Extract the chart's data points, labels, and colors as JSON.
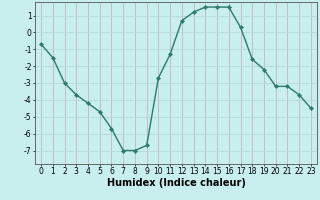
{
  "x": [
    0,
    1,
    2,
    3,
    4,
    5,
    6,
    7,
    8,
    9,
    10,
    11,
    12,
    13,
    14,
    15,
    16,
    17,
    18,
    19,
    20,
    21,
    22,
    23
  ],
  "y": [
    -0.7,
    -1.5,
    -3.0,
    -3.7,
    -4.2,
    -4.7,
    -5.7,
    -7.0,
    -7.0,
    -6.7,
    -2.7,
    -1.3,
    0.7,
    1.2,
    1.5,
    1.5,
    1.5,
    0.3,
    -1.6,
    -2.2,
    -3.2,
    -3.2,
    -3.7,
    -4.5
  ],
  "line_color": "#2d7a6a",
  "marker": "D",
  "markersize": 2.2,
  "background_color": "#c8eeee",
  "grid_color_h": "#b8d8d8",
  "grid_color_v": "#c0b8b8",
  "xlabel": "Humidex (Indice chaleur)",
  "ylim": [
    -7.8,
    1.8
  ],
  "xlim": [
    -0.5,
    23.5
  ],
  "yticks": [
    -7,
    -6,
    -5,
    -4,
    -3,
    -2,
    -1,
    0,
    1
  ],
  "xticks": [
    0,
    1,
    2,
    3,
    4,
    5,
    6,
    7,
    8,
    9,
    10,
    11,
    12,
    13,
    14,
    15,
    16,
    17,
    18,
    19,
    20,
    21,
    22,
    23
  ],
  "tick_fontsize": 5.5,
  "xlabel_fontsize": 7.0
}
